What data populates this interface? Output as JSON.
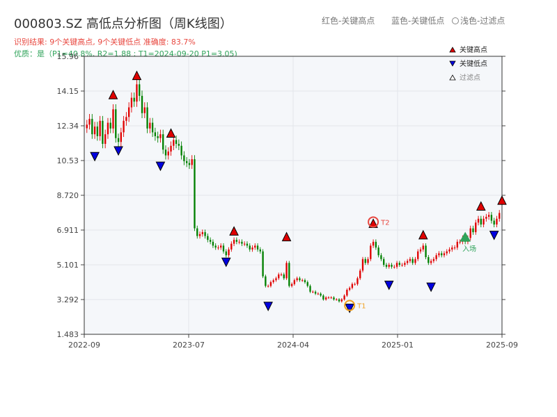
{
  "header": {
    "title": "000803.SZ 高低点分析图（周K线图）",
    "legend_red": "红色-关键高点",
    "legend_blue": "蓝色-关键低点",
    "legend_light": "浅色-过滤点"
  },
  "status": {
    "result": "识别结果: 9个关键高点, 9个关键低点   准确度: 83.7%",
    "quality": "优质：是（P1=40.8%, R2=1.88 ; T1=2024-09-20 P1=3.05)"
  },
  "chart_data": {
    "type": "candlestick",
    "title": "000803.SZ 高低点分析图（周K线图）",
    "ylim": [
      1.483,
      15.96
    ],
    "y_ticks": [
      "1.483",
      "3.292",
      "5.101",
      "6.911",
      "8.720",
      "10.53",
      "12.34",
      "14.15",
      "15.96"
    ],
    "x_ticks": [
      "2022-09",
      "2023-07",
      "2024-04",
      "2025-01",
      "2025-09"
    ],
    "legend": [
      {
        "label": "关键高点",
        "color": "#e00000"
      },
      {
        "label": "关键低点",
        "color": "#0000e0"
      },
      {
        "label": "过滤点",
        "color": "#ffffff"
      }
    ],
    "colors": {
      "up": "#e00000",
      "down": "#008000",
      "high": "#e00000",
      "low": "#0000e0",
      "t1": "#f0a020",
      "t2": "#e8473f",
      "entry": "#2fa35a"
    },
    "closes": [
      12.4,
      12.7,
      11.9,
      12.3,
      11.8,
      12.6,
      11.4,
      11.9,
      12.5,
      12.2,
      13.2,
      11.7,
      11.5,
      12.0,
      12.6,
      12.8,
      13.3,
      13.8,
      13.6,
      14.5,
      13.9,
      13.0,
      13.3,
      12.2,
      12.5,
      12.0,
      11.8,
      11.7,
      11.9,
      11.1,
      10.8,
      11.0,
      11.3,
      11.6,
      11.4,
      11.3,
      10.8,
      10.5,
      10.4,
      10.3,
      10.6,
      7.0,
      6.6,
      6.7,
      6.8,
      6.6,
      6.4,
      6.3,
      6.1,
      6.0,
      6.0,
      6.1,
      5.8,
      5.6,
      5.9,
      6.2,
      6.4,
      6.3,
      6.3,
      6.2,
      6.2,
      6.1,
      5.9,
      6.0,
      6.1,
      5.9,
      5.8,
      4.5,
      4.0,
      4.0,
      4.2,
      4.3,
      4.4,
      4.6,
      4.6,
      4.4,
      5.2,
      4.0,
      4.1,
      4.3,
      4.4,
      4.3,
      4.3,
      4.2,
      4.0,
      3.7,
      3.7,
      3.6,
      3.6,
      3.5,
      3.3,
      3.4,
      3.4,
      3.4,
      3.3,
      3.3,
      3.2,
      3.3,
      3.5,
      3.8,
      3.9,
      4.1,
      4.1,
      4.4,
      4.8,
      5.4,
      5.2,
      5.4,
      6.1,
      6.3,
      6.0,
      5.6,
      5.4,
      5.1,
      5.0,
      5.1,
      5.0,
      5.0,
      5.2,
      5.1,
      5.1,
      5.2,
      5.3,
      5.4,
      5.2,
      5.4,
      5.8,
      5.9,
      6.1,
      5.5,
      5.2,
      5.3,
      5.4,
      5.6,
      5.7,
      5.6,
      5.7,
      5.8,
      5.9,
      6.0,
      6.0,
      6.3,
      6.3,
      6.5,
      6.3,
      6.5,
      7.0,
      6.8,
      7.3,
      7.5,
      7.2,
      7.5,
      7.6,
      7.7,
      7.4,
      7.2,
      7.5,
      7.8
    ],
    "key_highs": [
      {
        "index": 10,
        "price": 13.6
      },
      {
        "index": 19,
        "price": 14.6
      },
      {
        "index": 32,
        "price": 11.6
      },
      {
        "index": 56,
        "price": 6.5
      },
      {
        "index": 76,
        "price": 6.2
      },
      {
        "index": 109,
        "price": 6.9
      },
      {
        "index": 128,
        "price": 6.3
      },
      {
        "index": 150,
        "price": 7.8
      },
      {
        "index": 158,
        "price": 8.1
      }
    ],
    "key_lows": [
      {
        "index": 3,
        "price": 11.1
      },
      {
        "index": 12,
        "price": 11.4
      },
      {
        "index": 28,
        "price": 10.6
      },
      {
        "index": 53,
        "price": 5.6
      },
      {
        "index": 69,
        "price": 3.3
      },
      {
        "index": 100,
        "price": 3.2
      },
      {
        "index": 115,
        "price": 4.4
      },
      {
        "index": 131,
        "price": 4.3
      },
      {
        "index": 155,
        "price": 7.0
      }
    ],
    "annotations": [
      {
        "label": "T1",
        "index": 100,
        "price": 3.2,
        "kind": "t1"
      },
      {
        "label": "T2",
        "index": 109,
        "price": 6.9,
        "kind": "t2"
      },
      {
        "label": "入场",
        "index": 144,
        "price": 6.6,
        "kind": "entry"
      }
    ]
  }
}
